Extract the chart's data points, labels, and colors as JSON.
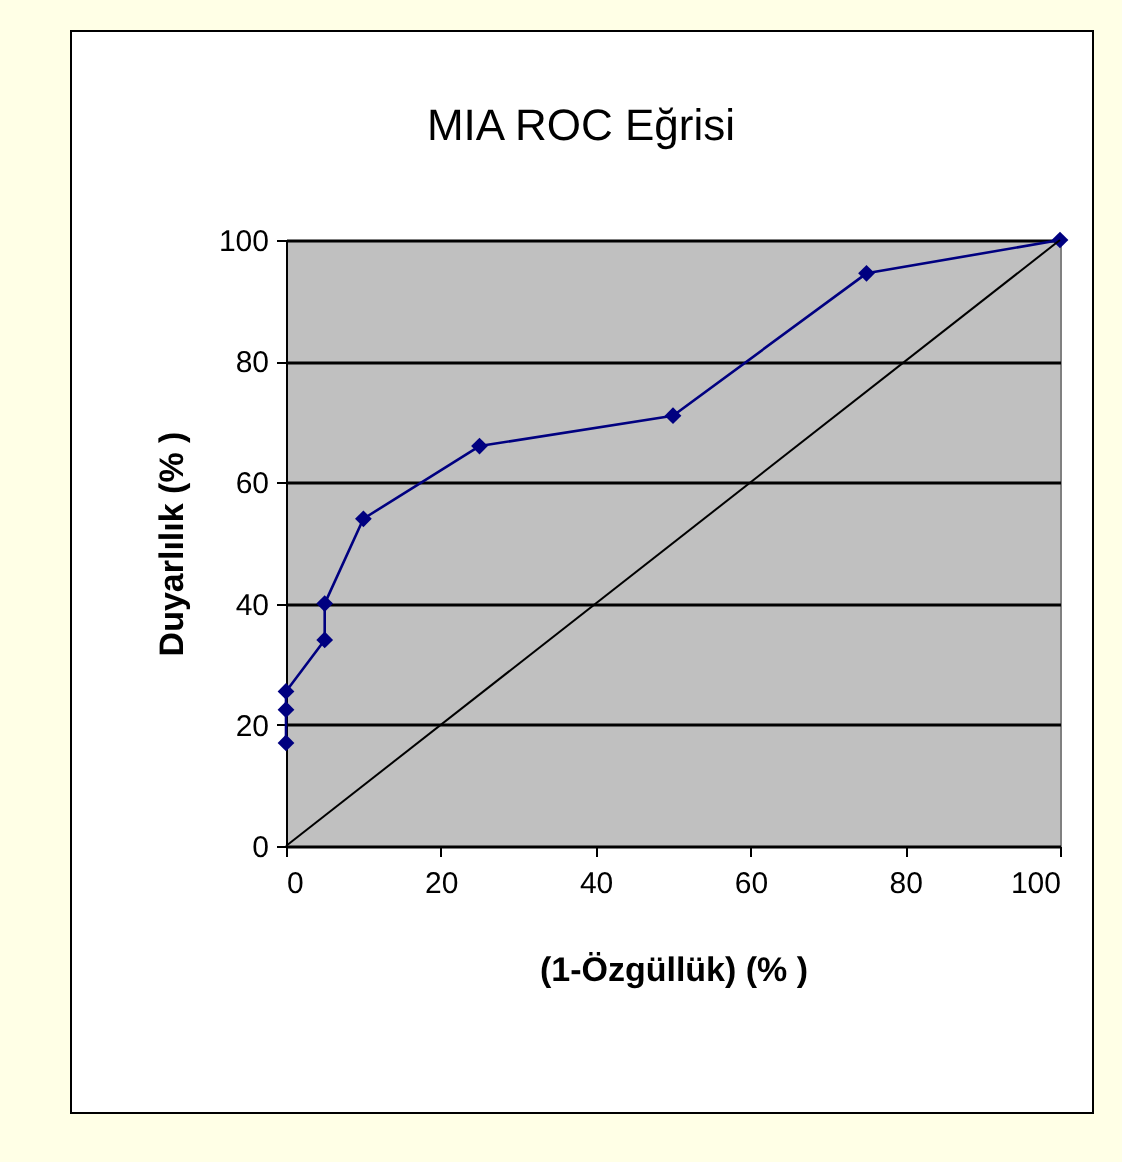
{
  "chart_data": {
    "type": "line",
    "title": "MIA ROC Eğrisi",
    "xlabel": "(1-Özgüllük) (% )",
    "ylabel": "Duyarlılık (% )",
    "series": [
      {
        "color": "#000080",
        "x": [
          0,
          0,
          0,
          5,
          5,
          10,
          25,
          50,
          75,
          100
        ],
        "values": [
          17,
          22.5,
          25.5,
          34,
          40,
          54,
          66,
          71,
          94.5,
          100
        ]
      },
      {
        "type": "line",
        "color": "#000000",
        "x": [
          0,
          100
        ],
        "values": [
          0,
          100
        ],
        "marker": "none"
      }
    ],
    "xlim": [
      0,
      100
    ],
    "xticks": [
      0,
      20,
      40,
      60,
      80,
      100
    ],
    "ylim": [
      0,
      100
    ],
    "yticks": [
      0,
      20,
      40,
      60,
      80,
      100
    ],
    "grid": "y",
    "marker": "diamond",
    "line_style": "solid"
  }
}
